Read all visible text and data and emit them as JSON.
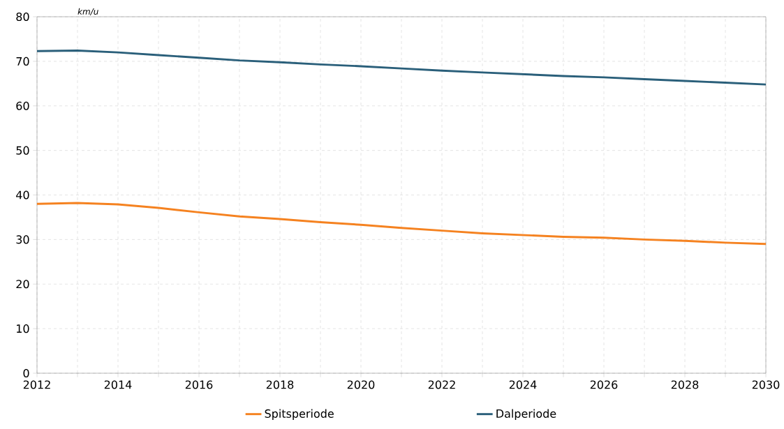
{
  "chart_data": {
    "type": "line",
    "ylabel": "km/u",
    "x": [
      2012,
      2013,
      2014,
      2015,
      2016,
      2017,
      2018,
      2019,
      2020,
      2021,
      2022,
      2023,
      2024,
      2025,
      2026,
      2027,
      2028,
      2029,
      2030
    ],
    "series": [
      {
        "name": "Spitsperiode",
        "color": "#f58220",
        "values": [
          38.0,
          38.2,
          37.9,
          37.1,
          36.1,
          35.2,
          34.6,
          33.9,
          33.3,
          32.6,
          32.0,
          31.4,
          31.0,
          30.6,
          30.4,
          30.0,
          29.7,
          29.3,
          29.0
        ]
      },
      {
        "name": "Dalperiode",
        "color": "#2a5f7a",
        "values": [
          72.3,
          72.4,
          72.0,
          71.4,
          70.8,
          70.2,
          69.8,
          69.3,
          68.9,
          68.4,
          67.9,
          67.5,
          67.1,
          66.7,
          66.4,
          66.0,
          65.6,
          65.2,
          64.8
        ]
      }
    ],
    "xlim": [
      2012,
      2030
    ],
    "ylim": [
      0,
      80
    ],
    "xticks": [
      2012,
      {
        "value": 2013,
        "label": null
      },
      2014,
      {
        "value": 2015,
        "label": null
      },
      2016,
      {
        "value": 2017,
        "label": null
      },
      2018,
      {
        "value": 2019,
        "label": null
      },
      2020,
      {
        "value": 2021,
        "label": null
      },
      2022,
      {
        "value": 2023,
        "label": null
      },
      2024,
      {
        "value": 2025,
        "label": null
      },
      2026,
      {
        "value": 2027,
        "label": null
      },
      2028,
      {
        "value": 2029,
        "label": null
      },
      2030
    ],
    "yticks": [
      0,
      10,
      20,
      30,
      40,
      50,
      60,
      70,
      80
    ],
    "grid": true,
    "legend": "bottom",
    "marker": "none",
    "line_style": "solid"
  }
}
